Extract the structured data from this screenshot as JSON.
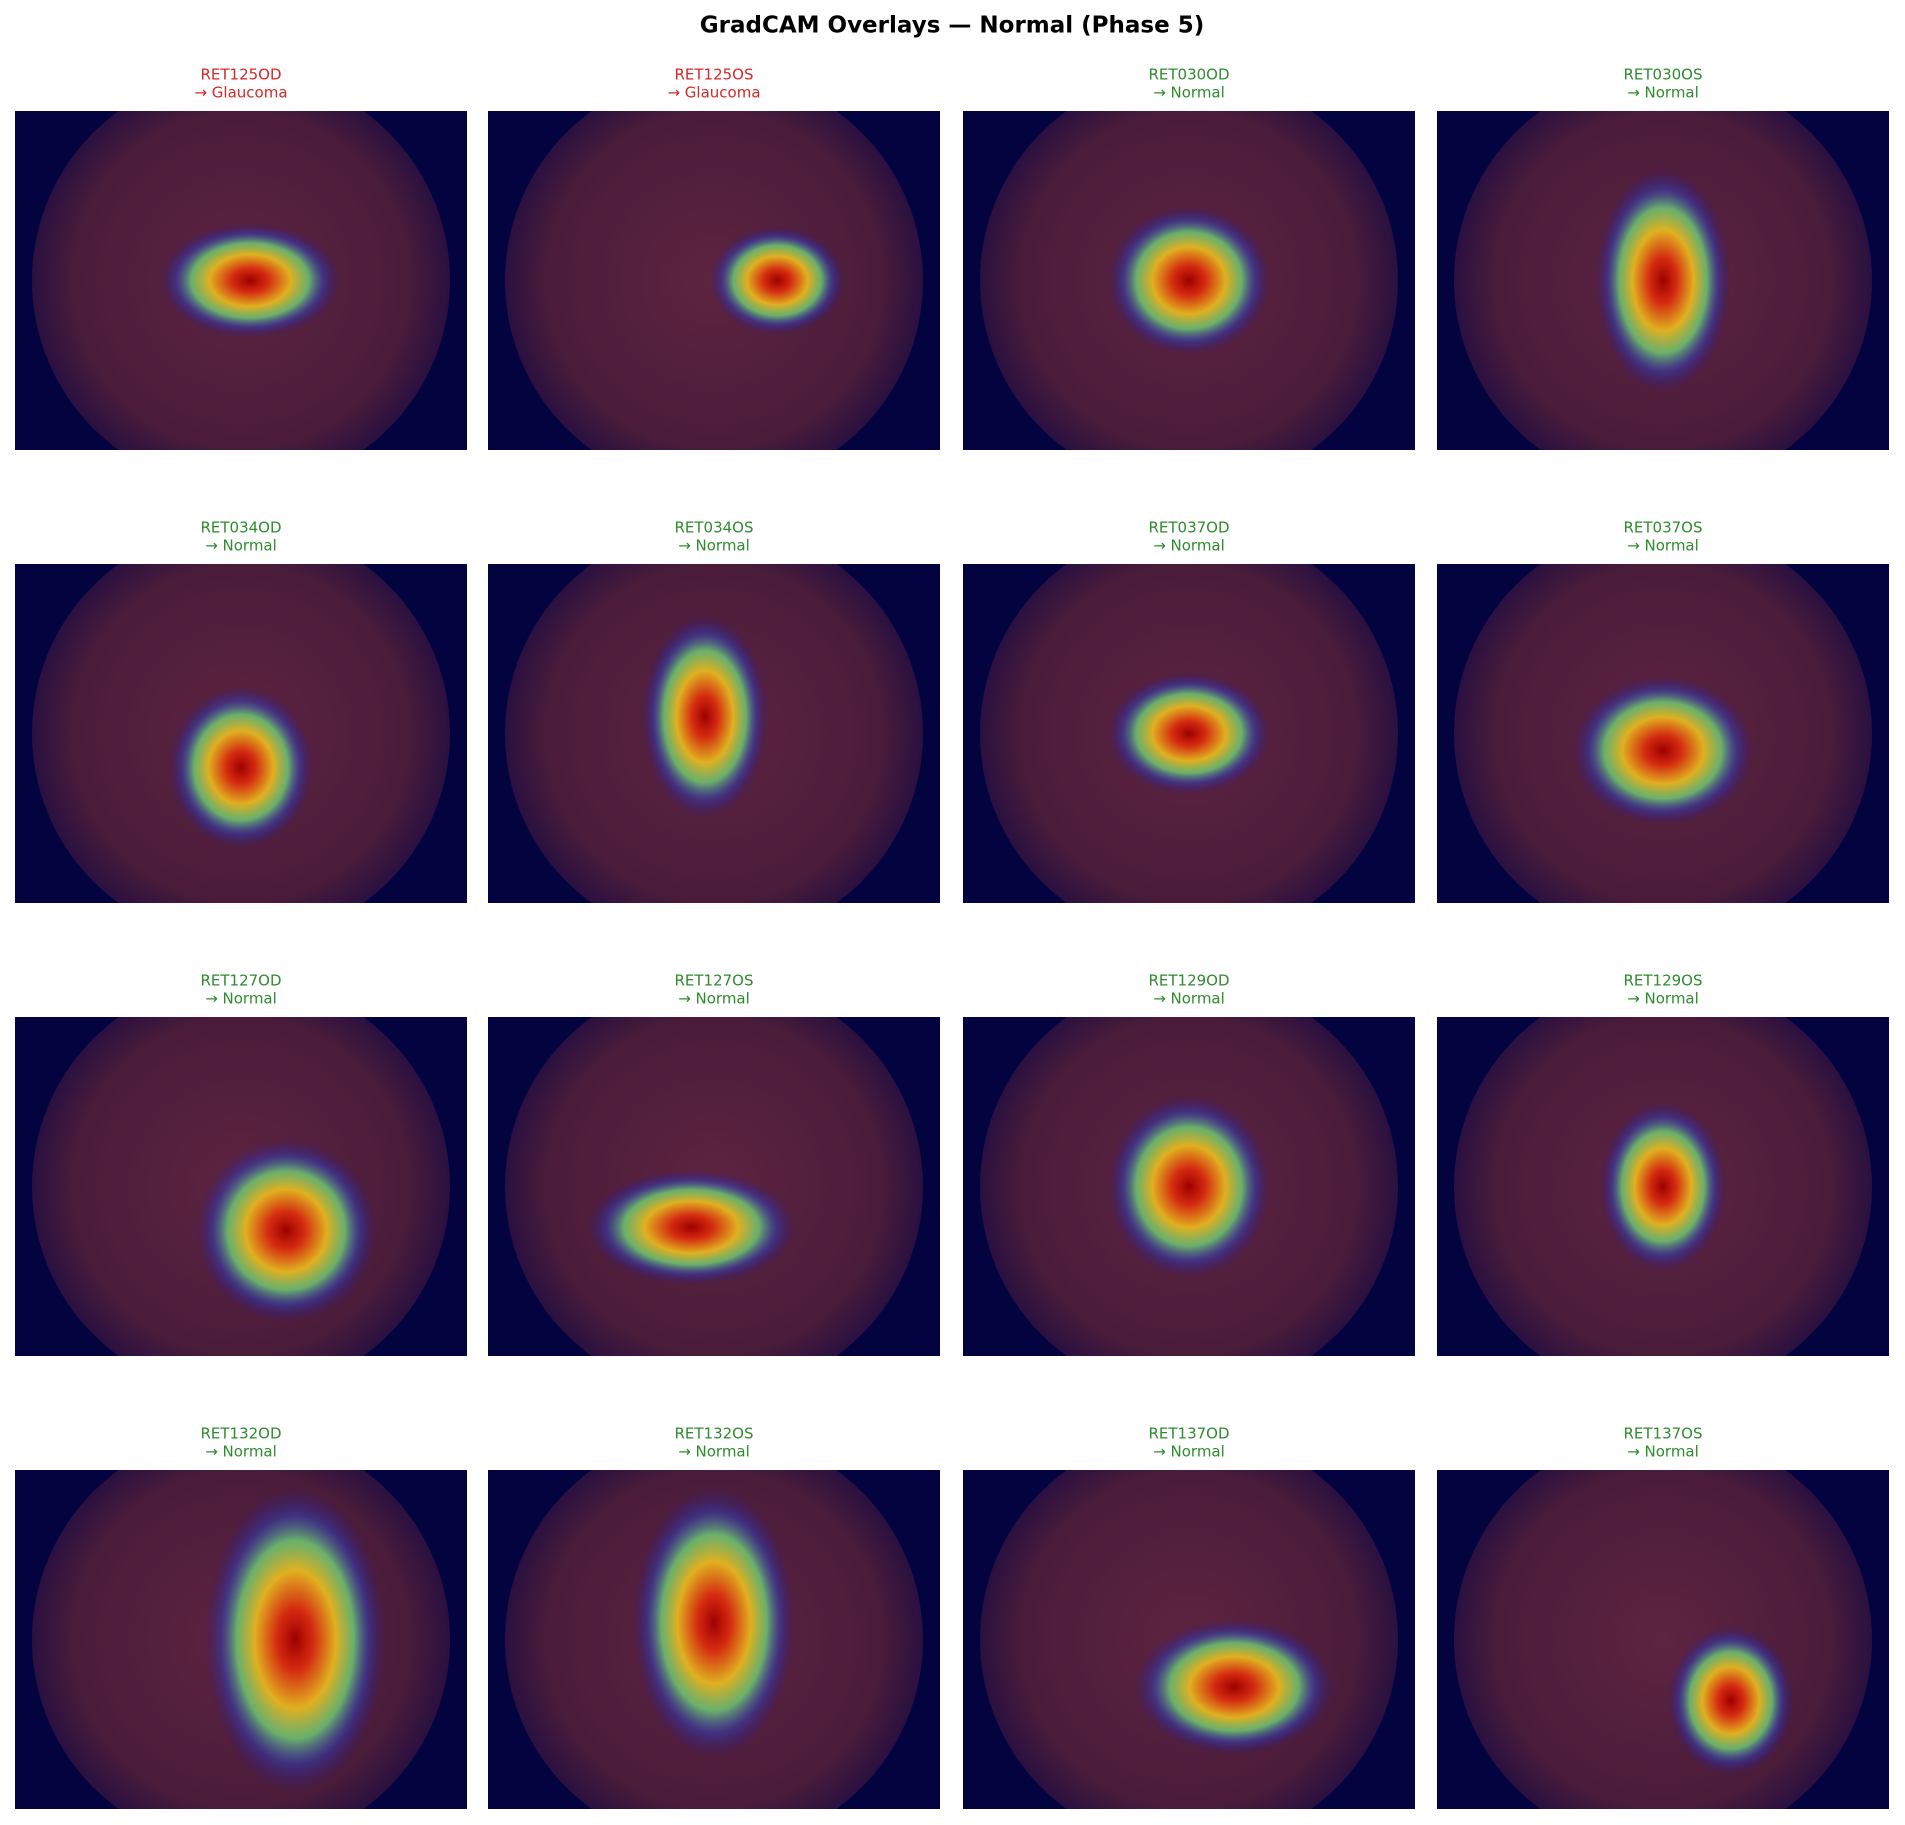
{
  "title": "GradCAM Overlays — Normal (Phase 5)",
  "panels": [
    {
      "id": "RET125OD",
      "prediction": "→ Glaucoma",
      "color": "#d62728"
    },
    {
      "id": "RET125OS",
      "prediction": "→ Glaucoma",
      "color": "#d62728"
    },
    {
      "id": "RET030OD",
      "prediction": "→ Normal",
      "color": "#2e8b2e"
    },
    {
      "id": "RET030OS",
      "prediction": "→ Normal",
      "color": "#2e8b2e"
    },
    {
      "id": "RET034OD",
      "prediction": "→ Normal",
      "color": "#2e8b2e"
    },
    {
      "id": "RET034OS",
      "prediction": "→ Normal",
      "color": "#2e8b2e"
    },
    {
      "id": "RET037OD",
      "prediction": "→ Normal",
      "color": "#2e8b2e"
    },
    {
      "id": "RET037OS",
      "prediction": "→ Normal",
      "color": "#2e8b2e"
    },
    {
      "id": "RET127OD",
      "prediction": "→ Normal",
      "color": "#2e8b2e"
    },
    {
      "id": "RET127OS",
      "prediction": "→ Normal",
      "color": "#2e8b2e"
    },
    {
      "id": "RET129OD",
      "prediction": "→ Normal",
      "color": "#2e8b2e"
    },
    {
      "id": "RET129OS",
      "prediction": "→ Normal",
      "color": "#2e8b2e"
    },
    {
      "id": "RET132OD",
      "prediction": "→ Normal",
      "color": "#2e8b2e"
    },
    {
      "id": "RET132OS",
      "prediction": "→ Normal",
      "color": "#2e8b2e"
    },
    {
      "id": "RET137OD",
      "prediction": "→ Normal",
      "color": "#2e8b2e"
    },
    {
      "id": "RET137OS",
      "prediction": "→ Normal",
      "color": "#2e8b2e"
    }
  ]
}
